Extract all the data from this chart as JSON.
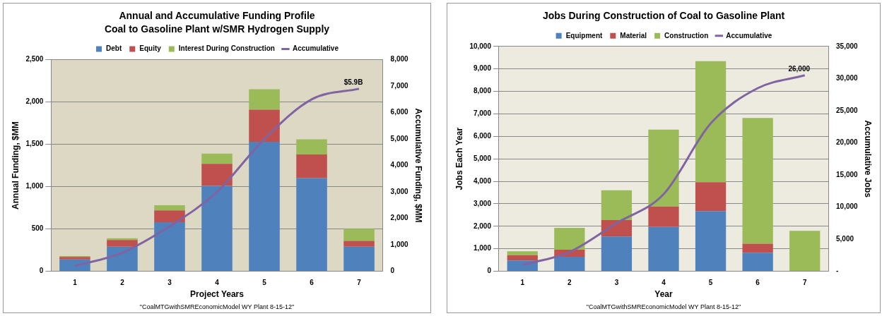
{
  "chart_data": [
    {
      "type": "bar",
      "title": "Annual and Accumulative Funding Profile",
      "subtitle": "Coal to Gasoline Plant w/SMR Hydrogen Supply",
      "xlabel": "Project Years",
      "ylabel": "Annual Funding, $MM",
      "y2label": "Accumulative Funding, $MM",
      "categories": [
        "1",
        "2",
        "3",
        "4",
        "5",
        "6",
        "7"
      ],
      "stacked": true,
      "grid": "y",
      "legend": "top",
      "marker": "none",
      "ylim": [
        0,
        2500
      ],
      "yticks": [
        {
          "value": 0,
          "label": "0"
        },
        {
          "value": 500,
          "label": "500"
        },
        {
          "value": 1000,
          "label": "1,000"
        },
        {
          "value": 1500,
          "label": "1,500"
        },
        {
          "value": 2000,
          "label": "2,000"
        },
        {
          "value": 2500,
          "label": "2,500"
        }
      ],
      "y2lim": [
        0,
        8000
      ],
      "y2ticks": [
        {
          "value": 0,
          "label": "0"
        },
        {
          "value": 1000,
          "label": "1,000"
        },
        {
          "value": 2000,
          "label": "2,000"
        },
        {
          "value": 3000,
          "label": "3,000"
        },
        {
          "value": 4000,
          "label": "4,000"
        },
        {
          "value": 5000,
          "label": "5,000"
        },
        {
          "value": 6000,
          "label": "6,000"
        },
        {
          "value": 7000,
          "label": "7,000"
        },
        {
          "value": 8000,
          "label": "8,000"
        }
      ],
      "series": [
        {
          "name": "Debt",
          "color": "#4f81bd",
          "values": [
            140,
            290,
            580,
            1010,
            1530,
            1100,
            290
          ]
        },
        {
          "name": "Equity",
          "color": "#c0504d",
          "values": [
            30,
            80,
            140,
            260,
            380,
            280,
            70
          ]
        },
        {
          "name": "Interest During Construction",
          "color": "#9bbb59",
          "values": [
            10,
            20,
            60,
            120,
            240,
            180,
            140
          ]
        },
        {
          "name": "Accumulative",
          "type": "line",
          "axis": "y2",
          "color": "#8064a2",
          "values": [
            200,
            700,
            1700,
            3000,
            5000,
            6500,
            6900
          ]
        }
      ],
      "annotations": [
        "$5.9B",
        "\"CoalMTGwithSMREconomicModel WY Plant 8-15-12\""
      ]
    },
    {
      "type": "bar",
      "title": "Jobs During Construction of Coal to Gasoline Plant",
      "xlabel": "Year",
      "ylabel": "Jobs Each Year",
      "y2label": "Accumulative Jobs",
      "categories": [
        "1",
        "2",
        "3",
        "4",
        "5",
        "6",
        "7"
      ],
      "stacked": true,
      "grid": "y",
      "legend": "top",
      "marker": "none",
      "ylim": [
        0,
        10000
      ],
      "yticks": [
        {
          "value": 0,
          "label": "0"
        },
        {
          "value": 1000,
          "label": "1,000"
        },
        {
          "value": 2000,
          "label": "2,000"
        },
        {
          "value": 3000,
          "label": "3,000"
        },
        {
          "value": 4000,
          "label": "4,000"
        },
        {
          "value": 5000,
          "label": "5,000"
        },
        {
          "value": 6000,
          "label": "6,000"
        },
        {
          "value": 7000,
          "label": "7,000"
        },
        {
          "value": 8000,
          "label": "8,000"
        },
        {
          "value": 9000,
          "label": "9,000"
        },
        {
          "value": 10000,
          "label": "10,000"
        }
      ],
      "y2lim": [
        0,
        35000
      ],
      "y2ticks": [
        {
          "value": 0,
          "label": "-"
        },
        {
          "value": 5000,
          "label": "5,000"
        },
        {
          "value": 10000,
          "label": "10,000"
        },
        {
          "value": 15000,
          "label": "15,000"
        },
        {
          "value": 20000,
          "label": "20,000"
        },
        {
          "value": 25000,
          "label": "25,000"
        },
        {
          "value": 30000,
          "label": "30,000"
        },
        {
          "value": 35000,
          "label": "35,000"
        }
      ],
      "series": [
        {
          "name": "Equipment",
          "color": "#4f81bd",
          "values": [
            480,
            650,
            1550,
            1970,
            2680,
            830,
            0
          ]
        },
        {
          "name": "Material",
          "color": "#c0504d",
          "values": [
            240,
            310,
            730,
            910,
            1280,
            400,
            0
          ]
        },
        {
          "name": "Construction",
          "color": "#9bbb59",
          "values": [
            170,
            970,
            1320,
            3420,
            5380,
            5590,
            1800
          ]
        },
        {
          "name": "Accumulative",
          "type": "line",
          "axis": "y2",
          "color": "#8064a2",
          "values": [
            1000,
            3000,
            7500,
            12000,
            23000,
            28500,
            30500
          ]
        }
      ],
      "annotations": [
        "26,000",
        "\"CoalMTGwithSMREconomicModel WY Plant 8-15-12\""
      ]
    }
  ]
}
